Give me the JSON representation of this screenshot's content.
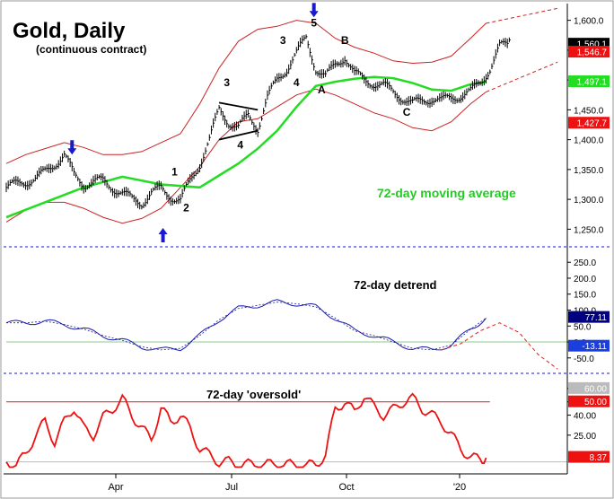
{
  "chart_data": {
    "type": "line",
    "title": "Gold, Daily",
    "subtitle": "(continuous contract)",
    "x_tick_labels": [
      "Apr",
      "Jul",
      "Oct",
      "'20"
    ],
    "price_panel": {
      "ylim": [
        1225,
        1625
      ],
      "y_ticks": [
        1250,
        1300,
        1350,
        1400,
        1450,
        1500,
        1550,
        1600
      ],
      "y_tick_labels": [
        "1,250.0",
        "1,300.0",
        "1,350.0",
        "1,400.0",
        "1,450.0",
        "1,500.0",
        "1,550.0",
        "1,600.0"
      ],
      "value_tags": [
        {
          "label": "1,560.1",
          "value": 1560.1,
          "bg": "#000000",
          "fg": "#ffffff"
        },
        {
          "label": "1,546.7",
          "value": 1546.7,
          "bg": "#ee1111",
          "fg": "#ffffff"
        },
        {
          "label": "1,497.1",
          "value": 1497.1,
          "bg": "#22dd22",
          "fg": "#ffffff"
        },
        {
          "label": "1,427.7",
          "value": 1427.7,
          "bg": "#ee1111",
          "fg": "#ffffff"
        }
      ],
      "series": [
        {
          "name": "Gold daily price",
          "color": "#000000",
          "x": [
            0,
            5,
            10,
            15,
            20,
            25,
            30,
            35,
            40,
            45,
            50,
            55,
            60,
            65,
            70,
            75,
            80,
            85,
            90,
            95,
            100,
            105,
            110,
            115,
            120,
            125,
            130,
            135,
            140,
            145,
            150,
            155,
            160,
            165,
            170,
            175,
            180,
            185,
            190,
            195,
            200,
            205,
            210,
            215,
            220,
            225,
            230,
            235,
            240,
            245,
            250,
            255,
            260
          ],
          "values": [
            1320,
            1325,
            1330,
            1335,
            1345,
            1360,
            1375,
            1340,
            1325,
            1330,
            1330,
            1320,
            1310,
            1300,
            1295,
            1310,
            1318,
            1305,
            1298,
            1330,
            1360,
            1400,
            1450,
            1430,
            1420,
            1440,
            1420,
            1470,
            1500,
            1520,
            1545,
            1570,
            1520,
            1505,
            1525,
            1540,
            1510,
            1500,
            1495,
            1490,
            1480,
            1470,
            1460,
            1465,
            1470,
            1465,
            1470,
            1475,
            1480,
            1495,
            1520,
            1555,
            1560
          ]
        },
        {
          "name": "72-day moving average",
          "color": "#22dd22",
          "x": [
            0,
            20,
            40,
            60,
            80,
            100,
            110,
            120,
            130,
            140,
            150,
            160,
            170,
            180,
            190,
            200,
            210,
            220,
            230,
            240,
            248
          ],
          "values": [
            1270,
            1295,
            1320,
            1338,
            1325,
            1320,
            1340,
            1360,
            1385,
            1415,
            1455,
            1490,
            1497,
            1502,
            1505,
            1503,
            1495,
            1484,
            1482,
            1493,
            1497
          ]
        },
        {
          "name": "Upper band",
          "color": "#cc2222",
          "x": [
            0,
            10,
            20,
            30,
            40,
            50,
            60,
            70,
            80,
            90,
            100,
            110,
            120,
            130,
            140,
            150,
            160,
            170,
            180,
            190,
            200,
            210,
            220,
            230,
            240,
            248
          ],
          "values": [
            1360,
            1375,
            1385,
            1395,
            1387,
            1375,
            1375,
            1380,
            1395,
            1410,
            1460,
            1520,
            1565,
            1585,
            1590,
            1600,
            1595,
            1570,
            1555,
            1545,
            1532,
            1528,
            1530,
            1540,
            1570,
            1595
          ]
        },
        {
          "name": "Lower band",
          "color": "#cc2222",
          "x": [
            0,
            10,
            20,
            30,
            40,
            50,
            60,
            70,
            80,
            90,
            100,
            110,
            120,
            130,
            140,
            150,
            160,
            170,
            180,
            190,
            200,
            210,
            220,
            230,
            240,
            248
          ],
          "values": [
            1262,
            1282,
            1295,
            1295,
            1285,
            1270,
            1260,
            1268,
            1285,
            1320,
            1355,
            1400,
            1430,
            1435,
            1455,
            1475,
            1485,
            1475,
            1460,
            1445,
            1435,
            1420,
            1415,
            1430,
            1460,
            1480
          ]
        }
      ],
      "annotations": [
        {
          "label": "1",
          "x": 87,
          "value": 1340
        },
        {
          "label": "2",
          "x": 93,
          "value": 1280
        },
        {
          "label": "3",
          "x": 114,
          "value": 1490
        },
        {
          "label": "4",
          "x": 121,
          "value": 1385
        },
        {
          "label": "3",
          "x": 143,
          "value": 1560
        },
        {
          "label": "4",
          "x": 150,
          "value": 1490
        },
        {
          "label": "5",
          "x": 159,
          "value": 1590
        },
        {
          "label": "A",
          "x": 163,
          "value": 1478
        },
        {
          "label": "B",
          "x": 175,
          "value": 1560
        },
        {
          "label": "C",
          "x": 207,
          "value": 1440
        }
      ],
      "arrows": [
        {
          "dir": "down",
          "x": 34,
          "value": 1375
        },
        {
          "dir": "up",
          "x": 81,
          "value": 1252
        },
        {
          "dir": "down",
          "x": 159,
          "value": 1605
        }
      ],
      "ma_label": "72-day moving average"
    },
    "detrend_panel": {
      "label": "72-day detrend",
      "ylim": [
        -90,
        290
      ],
      "y_ticks": [
        -50,
        0,
        50,
        100,
        150,
        200,
        250
      ],
      "y_tick_labels": [
        "-50.0",
        "0.0",
        "50.0",
        "100.0",
        "150.0",
        "200.0",
        "250.0"
      ],
      "value_tags": [
        {
          "label": "77.11",
          "value": 77.11,
          "bg": "#000080",
          "fg": "#ffffff"
        },
        {
          "label": "-13.11",
          "value": -13.11,
          "bg": "#1a3fdd",
          "fg": "#ffffff"
        }
      ],
      "series": [
        {
          "name": "72-day detrend",
          "color": "#1a1aaa",
          "x": [
            0,
            10,
            20,
            30,
            40,
            50,
            60,
            70,
            80,
            90,
            100,
            110,
            120,
            130,
            140,
            150,
            160,
            170,
            180,
            190,
            200,
            210,
            220,
            230,
            240,
            248
          ],
          "values": [
            60,
            60,
            65,
            55,
            40,
            20,
            5,
            -15,
            -25,
            -20,
            20,
            70,
            105,
            115,
            125,
            120,
            110,
            75,
            35,
            20,
            0,
            -20,
            -25,
            -10,
            40,
            75
          ]
        },
        {
          "name": "Projected cycle",
          "color": "#dd2222",
          "x": [
            225,
            235,
            245,
            255,
            265,
            275,
            285
          ],
          "values": [
            -25,
            -5,
            35,
            60,
            30,
            -40,
            -85
          ]
        }
      ]
    },
    "oscillator_panel": {
      "label": "72-day 'oversold'",
      "ylim": [
        0,
        70
      ],
      "y_ticks": [
        25,
        40,
        50,
        60
      ],
      "y_tick_labels": [
        "25.00",
        "40.00",
        "50.00",
        "60.00"
      ],
      "value_tags": [
        {
          "label": "60.00",
          "value": 60,
          "bg": "#bbbbbb",
          "fg": "#ffffff"
        },
        {
          "label": "50.00",
          "value": 50,
          "bg": "#ee1111",
          "fg": "#ffffff"
        },
        {
          "label": "8.37",
          "value": 8.37,
          "bg": "#ee1111",
          "fg": "#ffffff"
        }
      ],
      "threshold": 50,
      "series": [
        {
          "name": "72-day oversold",
          "color": "#ee1111",
          "x": [
            0,
            5,
            10,
            15,
            20,
            25,
            30,
            35,
            40,
            45,
            50,
            55,
            60,
            65,
            70,
            75,
            80,
            85,
            90,
            95,
            100,
            105,
            110,
            115,
            120,
            125,
            130,
            135,
            140,
            145,
            150,
            155,
            160,
            165,
            170,
            175,
            180,
            185,
            190,
            195,
            200,
            205,
            210,
            215,
            220,
            225,
            230,
            235,
            240,
            245,
            248
          ],
          "values": [
            5,
            3,
            10,
            25,
            35,
            20,
            35,
            46,
            30,
            25,
            38,
            45,
            52,
            40,
            30,
            22,
            45,
            35,
            40,
            30,
            15,
            10,
            5,
            5,
            3,
            3,
            3,
            3,
            3,
            3,
            2,
            2,
            3,
            10,
            45,
            50,
            42,
            55,
            46,
            40,
            44,
            50,
            53,
            45,
            40,
            35,
            25,
            15,
            8,
            7,
            8
          ]
        }
      ]
    }
  }
}
